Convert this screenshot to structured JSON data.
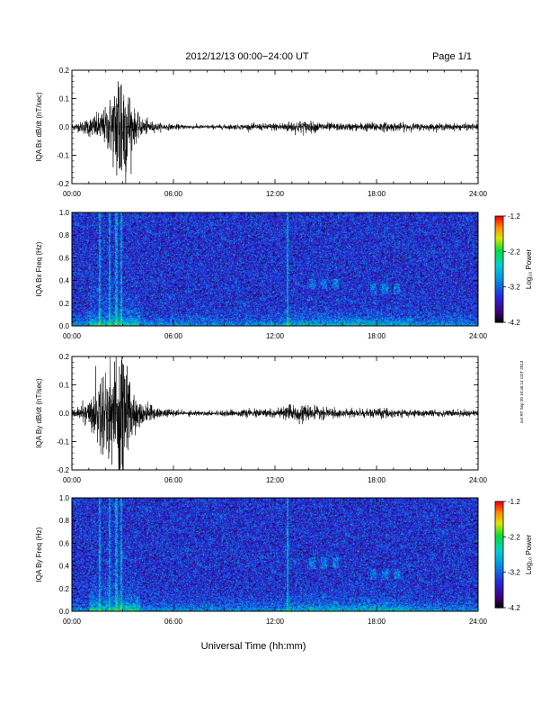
{
  "header": {
    "title": "2012/12/13  00:00−24:00 UT",
    "page": "Page 1/1"
  },
  "footer": {
    "xlabel": "Universal Time (hh:mm)",
    "stamp": "not RT Sep 20 10:46:14 CDT 2013"
  },
  "colorbar": {
    "label": "Log₁₀ Power",
    "ticks": [
      "-1.2",
      "-2.2",
      "-3.2",
      "-4.2"
    ],
    "range": [
      -4.2,
      -1.2
    ]
  },
  "chart_data": [
    {
      "type": "line",
      "name": "bx-dbdt",
      "ylabel": "IQA Bx dB/dt (nT/sec)",
      "xlim": [
        0,
        24
      ],
      "ylim": [
        -0.2,
        0.2
      ],
      "xticks": [
        "00:00",
        "06:00",
        "12:00",
        "18:00",
        "24:00"
      ],
      "yticks": [
        "0.2",
        "0.1",
        "0.0",
        "-0.1",
        "-0.2"
      ],
      "envelope": {
        "x": [
          0,
          0.5,
          1.0,
          1.5,
          2.0,
          2.5,
          2.8,
          3.0,
          3.3,
          3.6,
          4.0,
          5.0,
          6.0,
          8.0,
          10.0,
          12.0,
          13.5,
          14.5,
          16.0,
          18.0,
          19.5,
          21.0,
          24.0
        ],
        "amp": [
          0.01,
          0.015,
          0.03,
          0.04,
          0.06,
          0.12,
          0.25,
          0.22,
          0.14,
          0.06,
          0.03,
          0.012,
          0.008,
          0.006,
          0.008,
          0.012,
          0.02,
          0.015,
          0.01,
          0.015,
          0.012,
          0.01,
          0.01
        ]
      }
    },
    {
      "type": "heatmap",
      "name": "bx-spectrogram",
      "ylabel": "IQA Bx Freq (Hz)",
      "xlim": [
        0,
        24
      ],
      "ylim": [
        0.0,
        1.0
      ],
      "xticks": [
        "00:00",
        "06:00",
        "12:00",
        "18:00",
        "24:00"
      ],
      "yticks": [
        "1.0",
        "0.8",
        "0.6",
        "0.4",
        "0.2",
        "0.0"
      ],
      "vertical_lines_hours": [
        1.6,
        2.2,
        2.6,
        2.9,
        12.7
      ],
      "bands": [
        {
          "x": [
            14.0,
            16.0
          ],
          "f": [
            0.33,
            0.42
          ]
        },
        {
          "x": [
            17.6,
            19.6
          ],
          "f": [
            0.28,
            0.38
          ]
        }
      ]
    },
    {
      "type": "line",
      "name": "by-dbdt",
      "ylabel": "IQA By dB/dt (nT/sec)",
      "xlim": [
        0,
        24
      ],
      "ylim": [
        -0.2,
        0.2
      ],
      "xticks": [
        "00:00",
        "06:00",
        "12:00",
        "18:00",
        "24:00"
      ],
      "yticks": [
        "0.2",
        "0.1",
        "0.0",
        "-0.1",
        "-0.2"
      ],
      "envelope": {
        "x": [
          0,
          0.5,
          1.0,
          1.5,
          2.0,
          2.5,
          2.8,
          3.0,
          3.3,
          3.6,
          4.0,
          5.0,
          6.0,
          8.0,
          10.0,
          12.0,
          13.5,
          14.5,
          16.0,
          18.0,
          19.5,
          21.0,
          24.0
        ],
        "amp": [
          0.012,
          0.02,
          0.04,
          0.09,
          0.15,
          0.2,
          0.25,
          0.22,
          0.15,
          0.08,
          0.04,
          0.015,
          0.01,
          0.007,
          0.01,
          0.015,
          0.025,
          0.018,
          0.012,
          0.015,
          0.013,
          0.01,
          0.01
        ]
      }
    },
    {
      "type": "heatmap",
      "name": "by-spectrogram",
      "ylabel": "IQA By Freq (Hz)",
      "xlim": [
        0,
        24
      ],
      "ylim": [
        0.0,
        1.0
      ],
      "xticks": [
        "00:00",
        "06:00",
        "12:00",
        "18:00",
        "24:00"
      ],
      "yticks": [
        "1.0",
        "0.8",
        "0.6",
        "0.4",
        "0.2",
        "0.0"
      ],
      "vertical_lines_hours": [
        1.6,
        2.2,
        2.6,
        2.9,
        12.7
      ],
      "bands": [
        {
          "x": [
            14.0,
            16.0
          ],
          "f": [
            0.38,
            0.48
          ]
        },
        {
          "x": [
            17.6,
            19.6
          ],
          "f": [
            0.28,
            0.38
          ]
        }
      ]
    }
  ]
}
